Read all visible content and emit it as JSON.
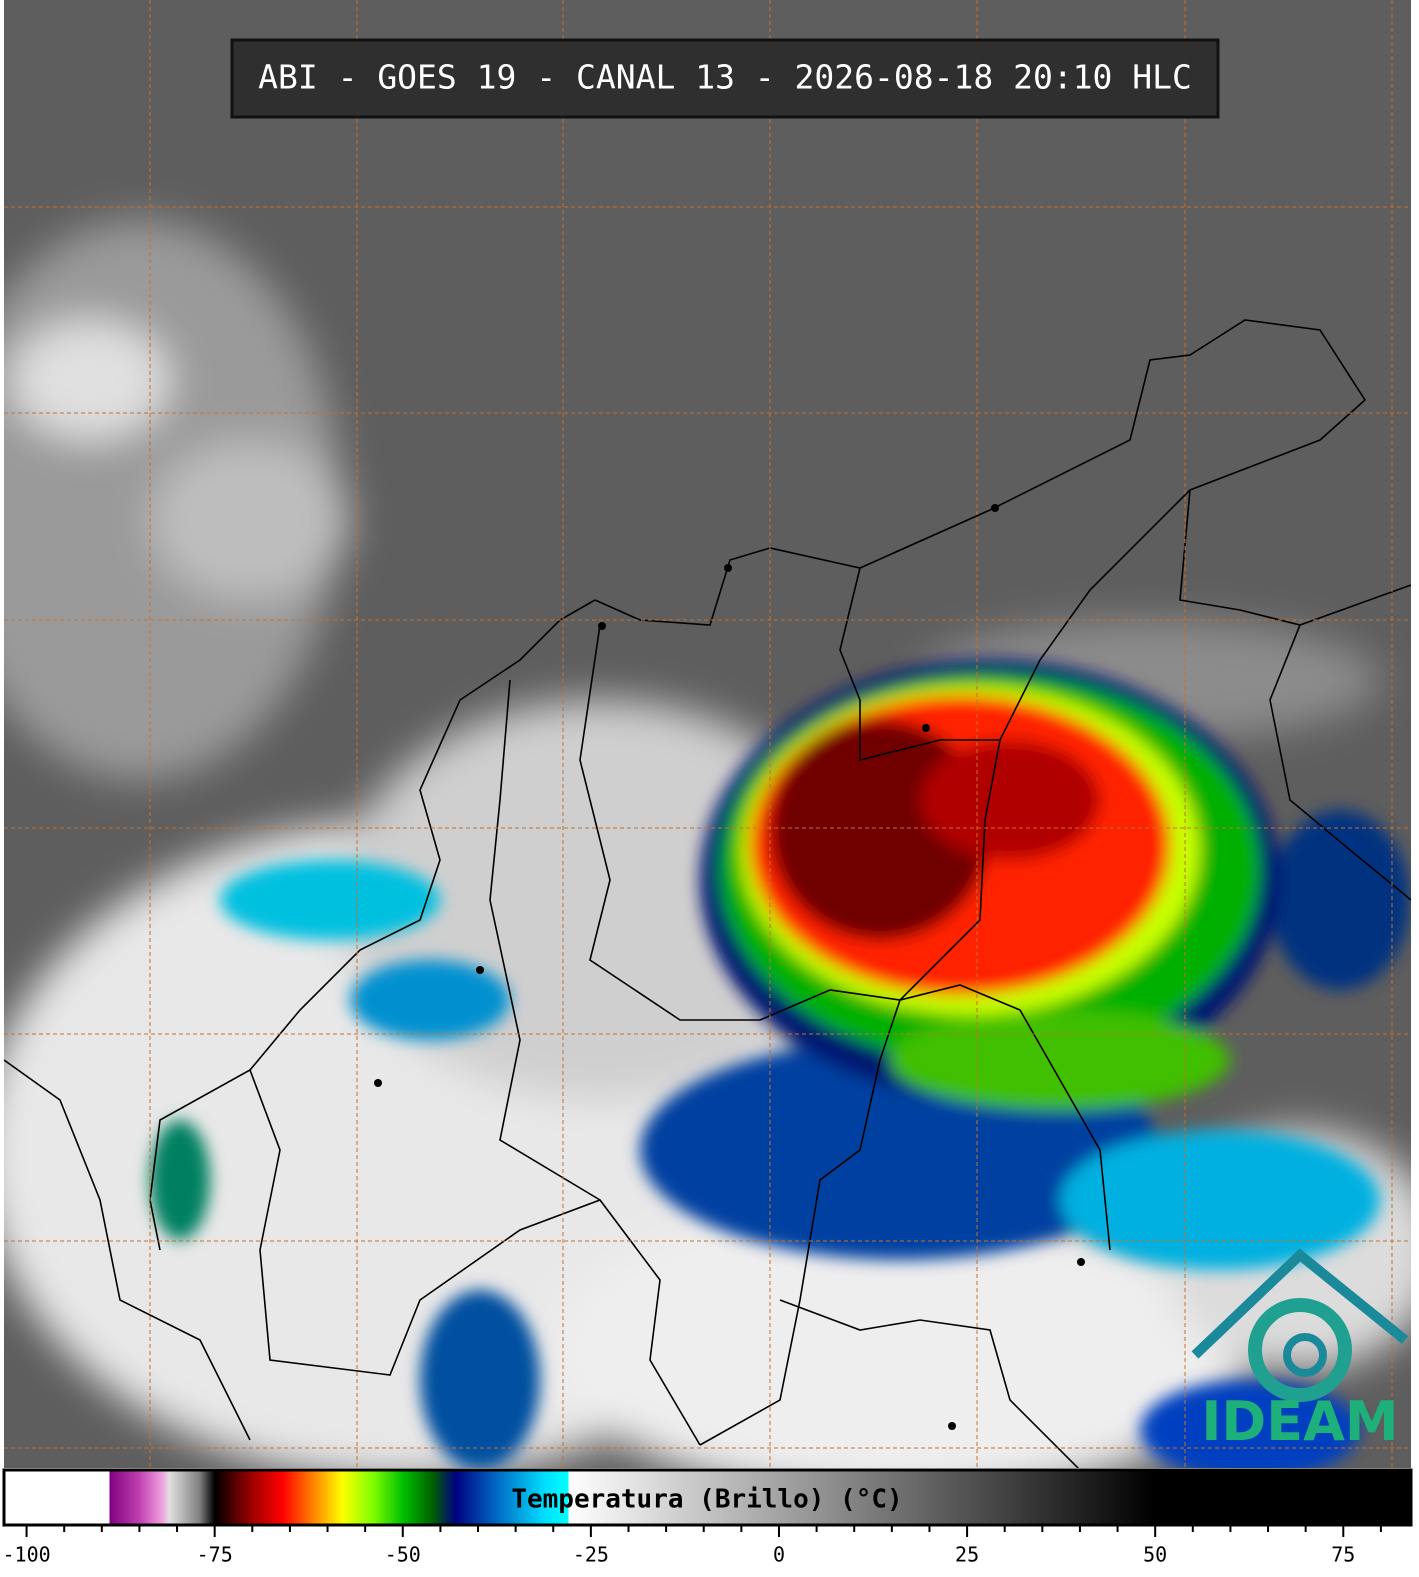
{
  "header": {
    "title": "ABI - GOES 19 - CANAL 13 - 2026-08-18 20:10 HLC"
  },
  "logo": {
    "text": "IDEAM"
  },
  "colorbar": {
    "label": "Temperatura (Brillo) (°C)",
    "xlim": [
      -103,
      84
    ],
    "ticks": [
      -100,
      -75,
      -50,
      -25,
      0,
      25,
      50,
      75
    ],
    "minor_ticks": [
      -95,
      -90,
      -85,
      -80,
      -70,
      -65,
      -60,
      -55,
      -45,
      -40,
      -35,
      -30,
      -20,
      -15,
      -10,
      -5,
      5,
      10,
      15,
      20,
      30,
      35,
      40,
      45,
      55,
      60,
      65,
      70,
      80
    ],
    "stops": [
      {
        "value": -103,
        "color": "#ffffff"
      },
      {
        "value": -89,
        "color": "#ffffff"
      },
      {
        "value": -89,
        "color": "#800080"
      },
      {
        "value": -85,
        "color": "#c040b0"
      },
      {
        "value": -82,
        "color": "#f0a0e0"
      },
      {
        "value": -81,
        "color": "#e0e0e0"
      },
      {
        "value": -77,
        "color": "#808080"
      },
      {
        "value": -75,
        "color": "#000000"
      },
      {
        "value": -73,
        "color": "#400000"
      },
      {
        "value": -70,
        "color": "#a00000"
      },
      {
        "value": -66,
        "color": "#ff0000"
      },
      {
        "value": -62,
        "color": "#ff8000"
      },
      {
        "value": -58,
        "color": "#ffff00"
      },
      {
        "value": -54,
        "color": "#80ff00"
      },
      {
        "value": -50,
        "color": "#00c000"
      },
      {
        "value": -46,
        "color": "#006000"
      },
      {
        "value": -43,
        "color": "#000080"
      },
      {
        "value": -38,
        "color": "#0060c0"
      },
      {
        "value": -31,
        "color": "#00e0ff"
      },
      {
        "value": -28,
        "color": "#00ffff"
      },
      {
        "value": -28,
        "color": "#ffffff"
      },
      {
        "value": 50,
        "color": "#000000"
      },
      {
        "value": 84,
        "color": "#000000"
      }
    ]
  }
}
